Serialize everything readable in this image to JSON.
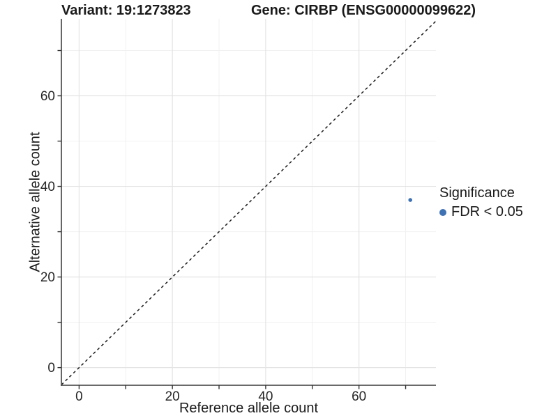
{
  "header": {
    "title_left": "Variant: 19:1273823",
    "title_right": "Gene: CIRBP (ENSG00000099622)"
  },
  "chart_data": {
    "type": "scatter",
    "title": "Variant: 19:1273823 — Gene: CIRBP (ENSG00000099622)",
    "xlabel": "Reference allele count",
    "ylabel": "Alternative allele count",
    "xlim": [
      -3.8,
      76.5
    ],
    "ylim": [
      -3.9,
      77.0
    ],
    "x_major_ticks": [
      0,
      20,
      40,
      60
    ],
    "x_minor_ticks": [
      10,
      30,
      50,
      70
    ],
    "y_major_ticks": [
      0,
      20,
      40,
      60
    ],
    "y_minor_ticks": [
      10,
      30,
      50,
      70
    ],
    "x_tick_labels": [
      "0",
      "20",
      "40",
      "60"
    ],
    "y_tick_labels": [
      "0",
      "20",
      "40",
      "60"
    ],
    "grid": true,
    "reference_line": {
      "equation": "y = x",
      "style": "dashed",
      "color": "#1a1a1a"
    },
    "series": [
      {
        "name": "FDR < 0.05",
        "color": "#3e72b4",
        "points": [
          {
            "x": 71,
            "y": 37
          }
        ]
      }
    ],
    "legend": {
      "position": "right",
      "title": "Significance",
      "entries": [
        {
          "label": "FDR < 0.05",
          "color": "#3e72b4"
        }
      ]
    }
  },
  "colors": {
    "point": "#3e72b4",
    "grid_major": "#e4e4e4",
    "grid_minor": "#f1f1f1",
    "axis_line": "#555555",
    "tick": "#333333",
    "dashed_line": "#1a1a1a"
  }
}
